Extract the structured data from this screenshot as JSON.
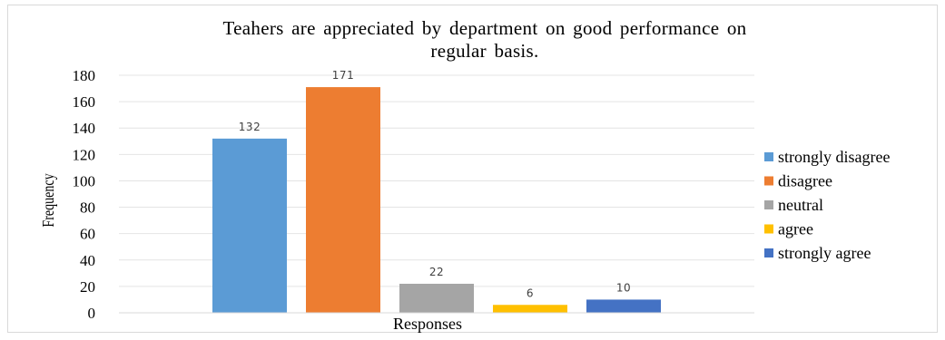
{
  "chart_data": {
    "type": "bar",
    "title_lines": [
      "Teahers  are appreciated by department on good performance on",
      "regular basis."
    ],
    "xlabel": "Responses",
    "ylabel": "Frequency",
    "ylim": [
      0,
      180
    ],
    "yticks": [
      0,
      20,
      40,
      60,
      80,
      100,
      120,
      140,
      160,
      180
    ],
    "grid": true,
    "legend_position": "right",
    "series": [
      {
        "name": "strongly disagree",
        "value": 132,
        "color": "#5b9bd5"
      },
      {
        "name": "disagree",
        "value": 171,
        "color": "#ed7d31"
      },
      {
        "name": "neutral",
        "value": 22,
        "color": "#a5a5a5"
      },
      {
        "name": "agree",
        "value": 6,
        "color": "#ffc000"
      },
      {
        "name": "strongly agree",
        "value": 10,
        "color": "#4472c4"
      }
    ]
  }
}
